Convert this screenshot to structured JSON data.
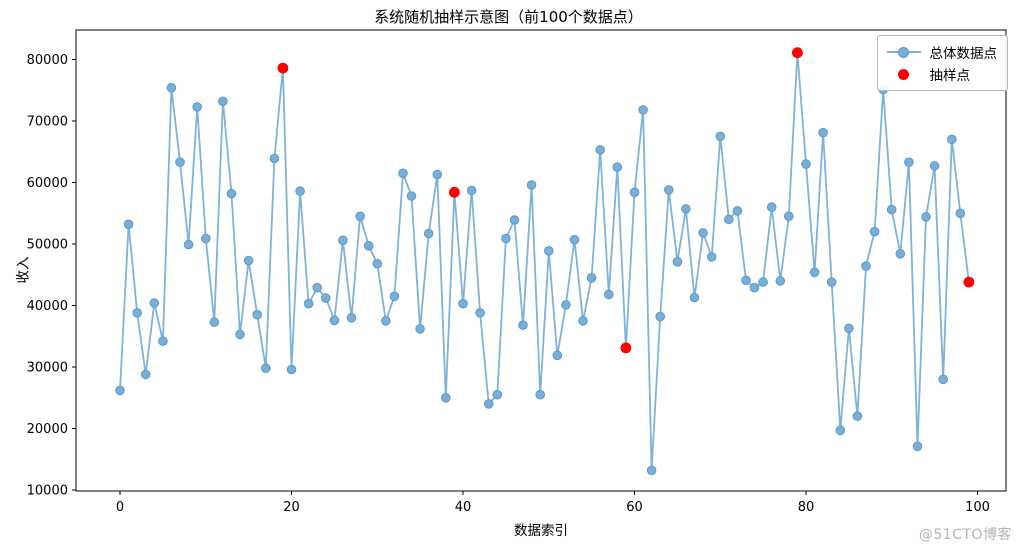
{
  "chart_data": {
    "type": "line",
    "title": "系统随机抽样示意图（前100个数据点）",
    "xlabel": "数据索引",
    "ylabel": "收入",
    "legend": {
      "population_label": "总体数据点",
      "sample_label": "抽样点",
      "position": "upper right"
    },
    "x_ticks": [
      0,
      20,
      40,
      60,
      80,
      100
    ],
    "y_ticks": [
      10000,
      20000,
      30000,
      40000,
      50000,
      60000,
      70000,
      80000
    ],
    "xlim": [
      -5,
      104
    ],
    "ylim": [
      9800,
      85000
    ],
    "grid": false,
    "x": "index 0..99",
    "values": [
      26200,
      53200,
      38800,
      28800,
      40400,
      34200,
      75400,
      63300,
      49900,
      72300,
      50900,
      37300,
      73200,
      58200,
      35300,
      47300,
      38500,
      29800,
      63900,
      78600,
      29600,
      58600,
      40300,
      42900,
      41200,
      37600,
      50600,
      38000,
      54500,
      49700,
      46800,
      37500,
      41500,
      61500,
      57800,
      36200,
      51700,
      61300,
      25000,
      58400,
      40300,
      58700,
      38800,
      24000,
      25500,
      50900,
      53900,
      36800,
      59600,
      25500,
      48900,
      31900,
      40100,
      50700,
      37500,
      44500,
      65300,
      41800,
      62500,
      33100,
      58400,
      71800,
      13200,
      38200,
      58800,
      47100,
      55700,
      41300,
      51800,
      47900,
      67500,
      54000,
      55400,
      44100,
      42900,
      43800,
      56000,
      44000,
      54500,
      81100,
      63000,
      45400,
      68100,
      43800,
      19700,
      36300,
      22000,
      46400,
      52000,
      75100,
      55600,
      48400,
      63300,
      17100,
      54400,
      62700,
      28000,
      67000,
      55000,
      43800
    ],
    "sampled_indices": [
      19,
      39,
      59,
      79,
      99
    ],
    "sampled_values": [
      78600,
      58400,
      33100,
      81100,
      43800
    ],
    "colors": {
      "population_line": "#7fb2d9",
      "population_marker_fill": "#79aed6",
      "population_marker_edge": "#5b9bc9",
      "sample_marker": "#ff0000",
      "axis": "#000000"
    }
  },
  "watermark": "@51CTO博客"
}
